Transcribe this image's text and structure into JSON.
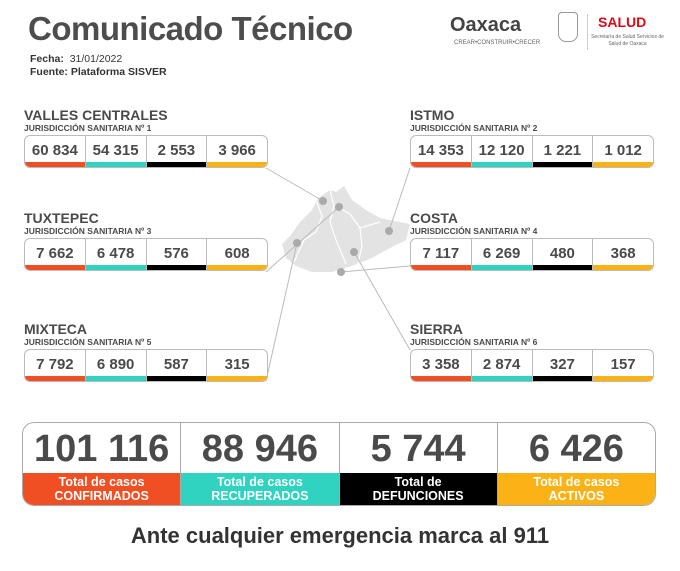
{
  "header": {
    "title": "Comunicado Técnico",
    "fecha_label": "Fecha:",
    "fecha": "31/01/2022",
    "fuente_label": "Fuente:",
    "fuente": "Plataforma SISVER"
  },
  "logos": {
    "oaxaca": "Oaxaca",
    "oaxaca_tagline": "CREAR•CONSTRUIR•CRECER",
    "salud": "SALUD",
    "salud_sub": "Secretaría de Salud Servicios de Salud de Oaxaca"
  },
  "colors": {
    "confirmados": "#f04e23",
    "recuperados": "#2fd3bf",
    "defunciones": "#000000",
    "activos": "#fbb217"
  },
  "regions": [
    {
      "name": "VALLES CENTRALES",
      "sub": "JURISDICCIÓN SANITARIA Nº 1",
      "values": [
        "60 834",
        "54 315",
        "2 553",
        "3 966"
      ]
    },
    {
      "name": "ISTMO",
      "sub": "JURISDICCIÓN SANITARIA Nº 2",
      "values": [
        "14 353",
        "12 120",
        "1 221",
        "1 012"
      ]
    },
    {
      "name": "TUXTEPEC",
      "sub": "JURISDICCIÓN SANITARIA Nº 3",
      "values": [
        "7 662",
        "6 478",
        "576",
        "608"
      ]
    },
    {
      "name": "COSTA",
      "sub": "JURISDICCIÓN SANITARIA Nº 4",
      "values": [
        "7 117",
        "6 269",
        "480",
        "368"
      ]
    },
    {
      "name": "MIXTECA",
      "sub": "JURISDICCIÓN SANITARIA Nº 5",
      "values": [
        "7 792",
        "6 890",
        "587",
        "315"
      ]
    },
    {
      "name": "SIERRA",
      "sub": "JURISDICCIÓN SANITARIA Nº 6",
      "values": [
        "3 358",
        "2 874",
        "327",
        "157"
      ]
    }
  ],
  "totals": [
    {
      "value": "101 116",
      "line1": "Total de casos",
      "line2": "CONFIRMADOS"
    },
    {
      "value": "88 946",
      "line1": "Total de casos",
      "line2": "RECUPERADOS"
    },
    {
      "value": "5 744",
      "line1": "Total de",
      "line2": "DEFUNCIONES"
    },
    {
      "value": "6 426",
      "line1": "Total de casos",
      "line2": "ACTIVOS"
    }
  ],
  "footer": "Ante cualquier emergencia marca al 911"
}
